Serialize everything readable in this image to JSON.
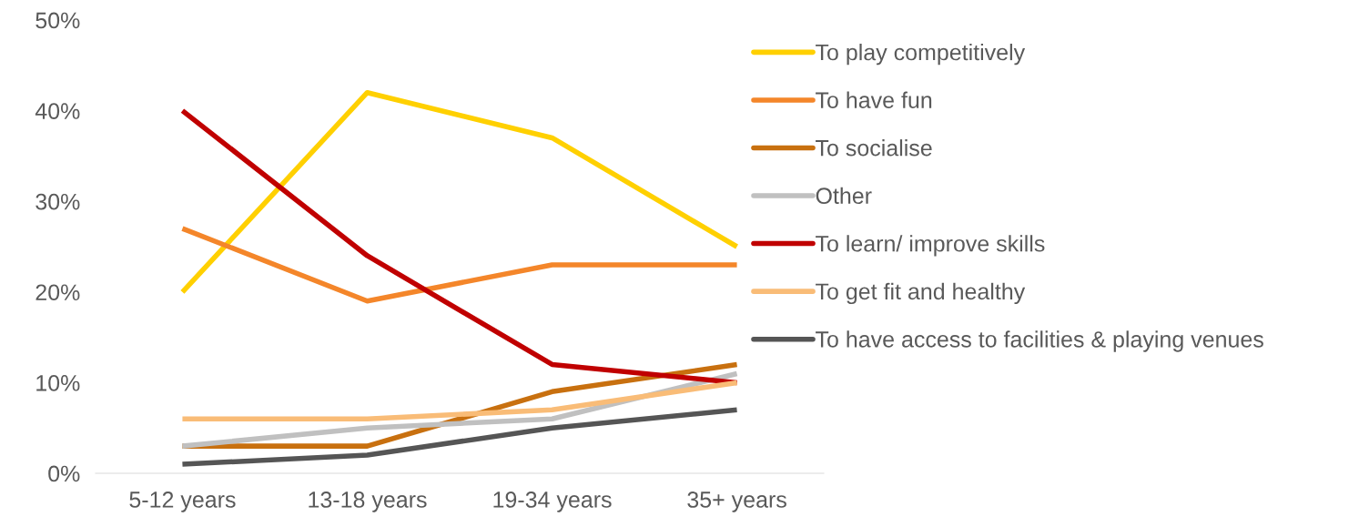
{
  "chart_data": {
    "type": "line",
    "categories": [
      "5-12 years",
      "13-18 years",
      "19-34 years",
      "35+ years"
    ],
    "series": [
      {
        "name": "To play competitively",
        "color": "#ffd000",
        "values": [
          20,
          42,
          37,
          25
        ]
      },
      {
        "name": "To have fun",
        "color": "#f4862a",
        "values": [
          27,
          19,
          23,
          23
        ]
      },
      {
        "name": "To socialise",
        "color": "#c8700f",
        "values": [
          3,
          3,
          9,
          12
        ]
      },
      {
        "name": "Other",
        "color": "#c0c0c0",
        "values": [
          3,
          5,
          6,
          11
        ]
      },
      {
        "name": "To learn/ improve skills",
        "color": "#c00000",
        "values": [
          40,
          24,
          12,
          10
        ]
      },
      {
        "name": "To get fit and healthy",
        "color": "#f9bc77",
        "values": [
          6,
          6,
          7,
          10
        ]
      },
      {
        "name": "To have access to facilities & playing venues",
        "color": "#555555",
        "values": [
          1,
          2,
          5,
          7
        ]
      }
    ],
    "ylim": [
      0,
      50
    ],
    "yticks": [
      {
        "value": 0,
        "label": "0%"
      },
      {
        "value": 10,
        "label": "10%"
      },
      {
        "value": 20,
        "label": "20%"
      },
      {
        "value": 30,
        "label": "30%"
      },
      {
        "value": 40,
        "label": "40%"
      },
      {
        "value": 50,
        "label": "50%"
      }
    ],
    "grid": false,
    "legend": "right",
    "marker": "none",
    "line_style": "solid"
  }
}
